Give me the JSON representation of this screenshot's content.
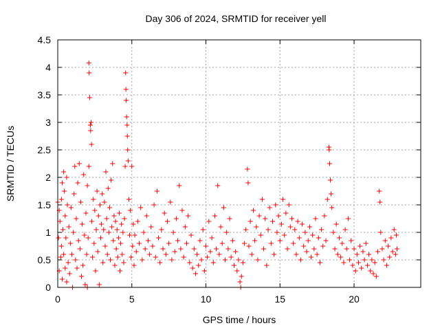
{
  "chart_data": {
    "type": "scatter",
    "title": "Day 306 of 2024, SRMTID for receiver yell",
    "xlabel": "GPS time / hours",
    "ylabel": "SRMTID / TECUs",
    "xlim": [
      0,
      24.5
    ],
    "ylim": [
      0,
      4.5
    ],
    "x_ticks": [
      0,
      5,
      10,
      15,
      20
    ],
    "x_tick_labels": [
      "0",
      "5",
      "10",
      "15",
      "20"
    ],
    "y_ticks": [
      0,
      0.5,
      1,
      1.5,
      2,
      2.5,
      3,
      3.5,
      4,
      4.5
    ],
    "y_tick_labels": [
      "0",
      "0.5",
      "1",
      "1.5",
      "2",
      "2.5",
      "3",
      "3.5",
      "4",
      "4.5"
    ],
    "grid": true,
    "marker": "plus",
    "series": [
      {
        "name": "SRMTID",
        "color": "#ff0000",
        "points": [
          [
            0.0,
            1.55
          ],
          [
            0.05,
            0.9
          ],
          [
            0.1,
            1.4
          ],
          [
            0.1,
            0.3
          ],
          [
            0.15,
            1.2
          ],
          [
            0.2,
            0.55
          ],
          [
            0.25,
            1.6
          ],
          [
            0.25,
            0.75
          ],
          [
            0.3,
            0.15
          ],
          [
            0.3,
            1.9
          ],
          [
            0.35,
            1.05
          ],
          [
            0.4,
            2.1
          ],
          [
            0.4,
            0.6
          ],
          [
            0.45,
            1.75
          ],
          [
            0.5,
            0.35
          ],
          [
            0.5,
            1.3
          ],
          [
            0.55,
            0.9
          ],
          [
            0.6,
            2.0
          ],
          [
            0.6,
            0.1
          ],
          [
            0.65,
            1.5
          ],
          [
            0.7,
            0.45
          ],
          [
            0.75,
            1.1
          ],
          [
            0.8,
            0.25
          ],
          [
            0.85,
            0.8
          ],
          [
            0.9,
            1.45
          ],
          [
            0.95,
            0.6
          ],
          [
            1.0,
            0.0
          ],
          [
            1.05,
            1.0
          ],
          [
            1.1,
            1.7
          ],
          [
            1.15,
            2.2
          ],
          [
            1.2,
            0.5
          ],
          [
            1.25,
            1.25
          ],
          [
            1.3,
            0.35
          ],
          [
            1.35,
            1.9
          ],
          [
            1.4,
            0.85
          ],
          [
            1.45,
            2.25
          ],
          [
            1.5,
            0.7
          ],
          [
            1.55,
            1.55
          ],
          [
            1.6,
            0.2
          ],
          [
            1.65,
            1.15
          ],
          [
            1.7,
            0.4
          ],
          [
            1.75,
            2.05
          ],
          [
            1.8,
            0.95
          ],
          [
            1.85,
            0.05
          ],
          [
            1.9,
            1.35
          ],
          [
            1.95,
            0.6
          ],
          [
            2.0,
            1.85
          ],
          [
            2.0,
            0.0
          ],
          [
            2.05,
            0.9
          ],
          [
            2.1,
            2.2
          ],
          [
            2.1,
            4.08
          ],
          [
            2.12,
            3.9
          ],
          [
            2.15,
            3.45
          ],
          [
            2.2,
            2.95
          ],
          [
            2.22,
            2.85
          ],
          [
            2.25,
            3.0
          ],
          [
            2.28,
            2.6
          ],
          [
            2.3,
            1.2
          ],
          [
            2.35,
            0.55
          ],
          [
            2.4,
            1.6
          ],
          [
            2.45,
            0.8
          ],
          [
            2.5,
            1.4
          ],
          [
            2.55,
            0.3
          ],
          [
            2.6,
            1.05
          ],
          [
            2.65,
            1.75
          ],
          [
            2.7,
            0.65
          ],
          [
            2.75,
            1.3
          ],
          [
            2.8,
            0.05
          ],
          [
            2.85,
            1.5
          ],
          [
            2.9,
            0.9
          ],
          [
            2.95,
            1.15
          ],
          [
            3.0,
            1.7
          ],
          [
            3.05,
            0.45
          ],
          [
            3.1,
            1.05
          ],
          [
            3.15,
            1.55
          ],
          [
            3.2,
            0.75
          ],
          [
            3.25,
            2.1
          ],
          [
            3.3,
            1.25
          ],
          [
            3.35,
            0.6
          ],
          [
            3.4,
            1.8
          ],
          [
            3.45,
            1.0
          ],
          [
            3.5,
            1.45
          ],
          [
            3.55,
            0.5
          ],
          [
            3.6,
            1.95
          ],
          [
            3.65,
            1.1
          ],
          [
            3.7,
            2.25
          ],
          [
            3.75,
            0.85
          ],
          [
            3.8,
            1.3
          ],
          [
            3.85,
            0.4
          ],
          [
            3.9,
            1.2
          ],
          [
            3.95,
            0.7
          ],
          [
            4.0,
            1.05
          ],
          [
            4.05,
            0.55
          ],
          [
            4.1,
            0.9
          ],
          [
            4.15,
            1.35
          ],
          [
            4.2,
            0.3
          ],
          [
            4.25,
            0.8
          ],
          [
            4.3,
            1.15
          ],
          [
            4.35,
            0.6
          ],
          [
            4.4,
            1.0
          ],
          [
            4.45,
            0.45
          ],
          [
            4.5,
            1.25
          ],
          [
            4.55,
            2.2
          ],
          [
            4.58,
            3.9
          ],
          [
            4.6,
            3.6
          ],
          [
            4.62,
            3.4
          ],
          [
            4.65,
            3.1
          ],
          [
            4.68,
            2.95
          ],
          [
            4.7,
            2.75
          ],
          [
            4.72,
            2.5
          ],
          [
            4.75,
            2.3
          ],
          [
            4.8,
            1.6
          ],
          [
            4.85,
            0.95
          ],
          [
            4.9,
            1.4
          ],
          [
            4.95,
            0.55
          ],
          [
            5.0,
            2.2
          ],
          [
            5.05,
            0.75
          ],
          [
            5.1,
            1.15
          ],
          [
            5.15,
            0.4
          ],
          [
            5.2,
            0.95
          ],
          [
            5.3,
            0.65
          ],
          [
            5.4,
            1.2
          ],
          [
            5.5,
            0.8
          ],
          [
            5.6,
            1.45
          ],
          [
            5.7,
            0.5
          ],
          [
            5.8,
            1.0
          ],
          [
            5.9,
            0.7
          ],
          [
            6.0,
            1.3
          ],
          [
            6.1,
            0.85
          ],
          [
            6.2,
            0.6
          ],
          [
            6.3,
            1.1
          ],
          [
            6.4,
            0.75
          ],
          [
            6.5,
            1.5
          ],
          [
            6.6,
            0.55
          ],
          [
            6.7,
            1.75
          ],
          [
            6.8,
            0.9
          ],
          [
            6.9,
            0.45
          ],
          [
            7.0,
            1.05
          ],
          [
            7.1,
            0.7
          ],
          [
            7.2,
            1.35
          ],
          [
            7.3,
            0.6
          ],
          [
            7.4,
            1.2
          ],
          [
            7.5,
            0.8
          ],
          [
            7.6,
            1.55
          ],
          [
            7.7,
            0.5
          ],
          [
            7.8,
            1.0
          ],
          [
            7.9,
            0.65
          ],
          [
            8.0,
            1.25
          ],
          [
            8.1,
            0.85
          ],
          [
            8.2,
            1.85
          ],
          [
            8.3,
            0.7
          ],
          [
            8.4,
            1.4
          ],
          [
            8.5,
            0.55
          ],
          [
            8.6,
            1.1
          ],
          [
            8.7,
            0.8
          ],
          [
            8.8,
            1.3
          ],
          [
            8.9,
            0.45
          ],
          [
            9.0,
            0.95
          ],
          [
            9.1,
            0.35
          ],
          [
            9.2,
            0.7
          ],
          [
            9.3,
            0.25
          ],
          [
            9.4,
            0.6
          ],
          [
            9.5,
            0.4
          ],
          [
            9.6,
            0.85
          ],
          [
            9.7,
            0.5
          ],
          [
            9.8,
            1.05
          ],
          [
            9.9,
            0.3
          ],
          [
            10.0,
            0.75
          ],
          [
            10.1,
            0.55
          ],
          [
            10.2,
            1.2
          ],
          [
            10.3,
            0.65
          ],
          [
            10.4,
            0.9
          ],
          [
            10.5,
            0.45
          ],
          [
            10.6,
            1.3
          ],
          [
            10.7,
            0.7
          ],
          [
            10.8,
            1.85
          ],
          [
            10.9,
            0.6
          ],
          [
            11.0,
            1.1
          ],
          [
            11.1,
            0.8
          ],
          [
            11.2,
            1.45
          ],
          [
            11.3,
            0.5
          ],
          [
            11.4,
            1.0
          ],
          [
            11.5,
            0.7
          ],
          [
            11.6,
            1.25
          ],
          [
            11.7,
            0.55
          ],
          [
            11.8,
            0.85
          ],
          [
            11.9,
            0.4
          ],
          [
            12.0,
            0.65
          ],
          [
            12.1,
            0.3
          ],
          [
            12.2,
            0.5
          ],
          [
            12.3,
            0.1
          ],
          [
            12.35,
            0.0
          ],
          [
            12.4,
            0.2
          ],
          [
            12.5,
            0.45
          ],
          [
            12.6,
            0.8
          ],
          [
            12.7,
            1.05
          ],
          [
            12.8,
            2.15
          ],
          [
            12.85,
            1.9
          ],
          [
            12.9,
            0.75
          ],
          [
            13.0,
            1.2
          ],
          [
            13.1,
            0.6
          ],
          [
            13.2,
            1.4
          ],
          [
            13.3,
            0.85
          ],
          [
            13.4,
            1.1
          ],
          [
            13.5,
            0.5
          ],
          [
            13.6,
            1.3
          ],
          [
            13.7,
            0.95
          ],
          [
            13.8,
            1.6
          ],
          [
            13.9,
            0.7
          ],
          [
            14.0,
            1.25
          ],
          [
            14.1,
            0.4
          ],
          [
            14.2,
            1.05
          ],
          [
            14.3,
            1.45
          ],
          [
            14.4,
            0.8
          ],
          [
            14.5,
            1.2
          ],
          [
            14.6,
            0.6
          ],
          [
            14.7,
            1.5
          ],
          [
            14.8,
            1.0
          ],
          [
            14.9,
            1.3
          ],
          [
            15.0,
            0.85
          ],
          [
            15.1,
            1.15
          ],
          [
            15.2,
            1.6
          ],
          [
            15.3,
            0.95
          ],
          [
            15.4,
            1.35
          ],
          [
            15.5,
            0.7
          ],
          [
            15.6,
            1.5
          ],
          [
            15.7,
            1.1
          ],
          [
            15.8,
            1.25
          ],
          [
            15.9,
            0.8
          ],
          [
            16.0,
            1.05
          ],
          [
            16.1,
            0.6
          ],
          [
            16.2,
            1.2
          ],
          [
            16.3,
            0.9
          ],
          [
            16.4,
            0.5
          ],
          [
            16.5,
            1.15
          ],
          [
            16.6,
            0.75
          ],
          [
            16.7,
            1.0
          ],
          [
            16.8,
            0.65
          ],
          [
            16.9,
            0.85
          ],
          [
            17.0,
            1.1
          ],
          [
            17.1,
            0.55
          ],
          [
            17.2,
            0.95
          ],
          [
            17.3,
            0.7
          ],
          [
            17.4,
            1.25
          ],
          [
            17.5,
            0.6
          ],
          [
            17.6,
            0.9
          ],
          [
            17.7,
            0.45
          ],
          [
            17.8,
            1.05
          ],
          [
            17.9,
            0.75
          ],
          [
            18.0,
            1.3
          ],
          [
            18.1,
            0.85
          ],
          [
            18.2,
            1.6
          ],
          [
            18.3,
            2.55
          ],
          [
            18.32,
            2.5
          ],
          [
            18.35,
            2.25
          ],
          [
            18.4,
            1.95
          ],
          [
            18.45,
            1.7
          ],
          [
            18.5,
            1.45
          ],
          [
            18.6,
            1.0
          ],
          [
            18.7,
            0.7
          ],
          [
            18.8,
            1.15
          ],
          [
            18.9,
            0.6
          ],
          [
            19.0,
            0.9
          ],
          [
            19.1,
            0.55
          ],
          [
            19.2,
            0.8
          ],
          [
            19.3,
            0.45
          ],
          [
            19.4,
            1.05
          ],
          [
            19.5,
            0.7
          ],
          [
            19.6,
            1.25
          ],
          [
            19.7,
            0.5
          ],
          [
            19.8,
            0.85
          ],
          [
            19.9,
            0.4
          ],
          [
            20.0,
            0.7
          ],
          [
            20.1,
            0.3
          ],
          [
            20.2,
            0.6
          ],
          [
            20.3,
            0.45
          ],
          [
            20.4,
            0.75
          ],
          [
            20.5,
            0.35
          ],
          [
            20.6,
            0.65
          ],
          [
            20.7,
            0.5
          ],
          [
            20.8,
            0.8
          ],
          [
            20.9,
            0.4
          ],
          [
            21.0,
            0.6
          ],
          [
            21.1,
            0.3
          ],
          [
            21.2,
            0.5
          ],
          [
            21.3,
            0.25
          ],
          [
            21.4,
            0.45
          ],
          [
            21.5,
            0.2
          ],
          [
            21.6,
            0.65
          ],
          [
            21.7,
            1.75
          ],
          [
            21.75,
            1.55
          ],
          [
            21.8,
            1.0
          ],
          [
            21.9,
            0.7
          ],
          [
            22.0,
            0.5
          ],
          [
            22.1,
            0.85
          ],
          [
            22.2,
            0.4
          ],
          [
            22.3,
            0.75
          ],
          [
            22.4,
            0.55
          ],
          [
            22.5,
            0.9
          ],
          [
            22.6,
            0.65
          ],
          [
            22.7,
            1.05
          ],
          [
            22.8,
            0.6
          ],
          [
            22.85,
            0.95
          ],
          [
            22.9,
            0.7
          ]
        ]
      }
    ]
  }
}
